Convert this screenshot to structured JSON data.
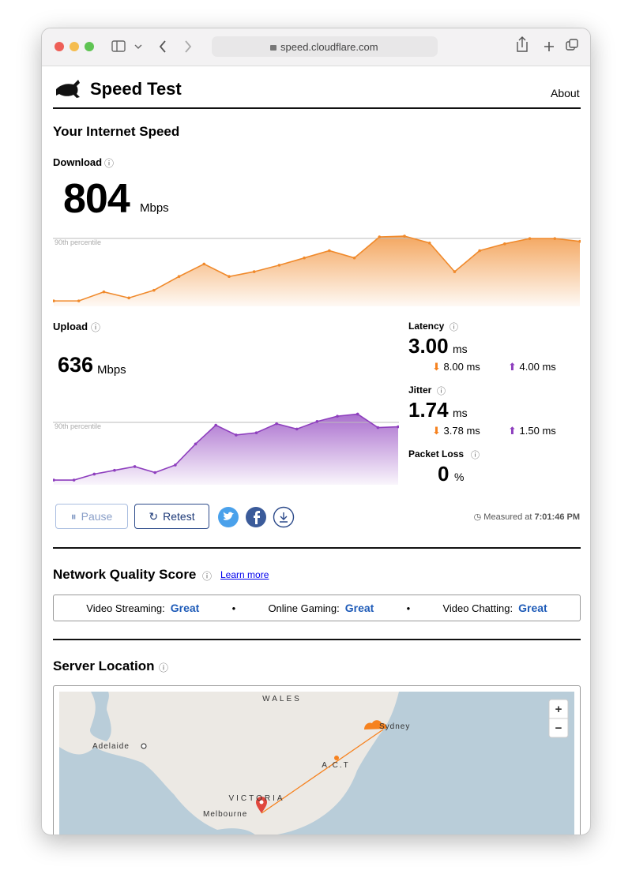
{
  "browser": {
    "url": "speed.cloudflare.com"
  },
  "header": {
    "title": "Speed Test",
    "nav": "About"
  },
  "speed": {
    "heading": "Your Internet Speed",
    "download": {
      "label": "Download",
      "value": "804",
      "unit": "Mbps",
      "chart": {
        "percentile_label": "90th percentile",
        "ylim": [
          0,
          860
        ],
        "values": [
          28,
          28,
          140,
          65,
          160,
          330,
          485,
          330,
          390,
          470,
          560,
          650,
          560,
          820,
          830,
          745,
          390,
          650,
          735,
          800,
          800,
          765
        ]
      }
    },
    "upload": {
      "label": "Upload",
      "value": "636",
      "unit": "Mbps",
      "chart": {
        "percentile_label": "90th percentile",
        "ylim": [
          0,
          720
        ],
        "values": [
          16,
          16,
          78,
          117,
          156,
          94,
          172,
          390,
          585,
          483,
          506,
          600,
          545,
          623,
          678,
          700,
          560,
          568
        ]
      }
    },
    "latency": {
      "label": "Latency",
      "value": "3.00",
      "unit": "ms",
      "down": "8.00 ms",
      "up": "4.00 ms"
    },
    "jitter": {
      "label": "Jitter",
      "value": "1.74",
      "unit": "ms",
      "down": "3.78 ms",
      "up": "1.50 ms"
    },
    "packet_loss": {
      "label": "Packet Loss",
      "value": "0",
      "unit": "%"
    },
    "buttons": {
      "pause": "Pause",
      "retest": "Retest"
    },
    "measured": {
      "prefix": "Measured at",
      "time": "7:01:46 PM"
    }
  },
  "network_quality": {
    "heading": "Network Quality Score",
    "link": "Learn more",
    "items": [
      {
        "label": "Video Streaming:",
        "value": "Great"
      },
      {
        "label": "Online Gaming:",
        "value": "Great"
      },
      {
        "label": "Video Chatting:",
        "value": "Great"
      }
    ]
  },
  "server": {
    "heading": "Server Location",
    "map_labels": [
      "WALES",
      "Sydney",
      "Adelaide",
      "A.C.T",
      "VICTORIA",
      "Melbourne"
    ],
    "zoom": [
      "+",
      "−"
    ]
  }
}
